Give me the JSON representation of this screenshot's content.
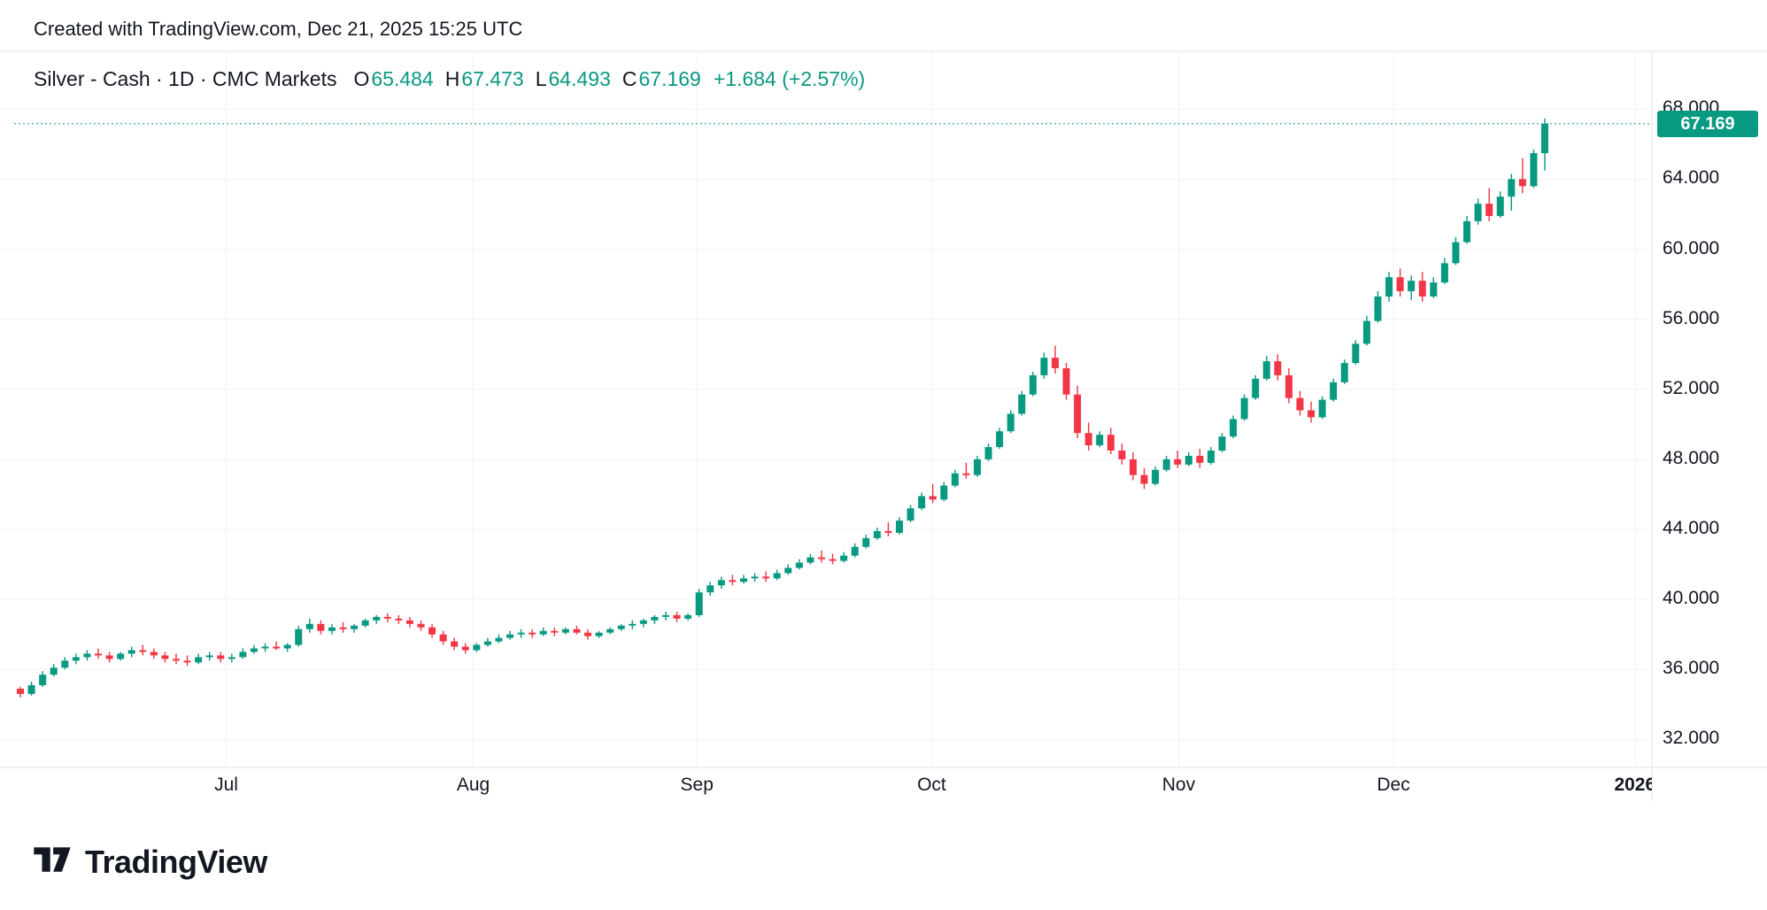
{
  "attribution": "Created with TradingView.com, Dec 21, 2025 15:25 UTC",
  "legend": {
    "symbol": "Silver - Cash · 1D · CMC Markets",
    "ohlc": [
      {
        "key": "O",
        "value": "65.484"
      },
      {
        "key": "H",
        "value": "67.473"
      },
      {
        "key": "L",
        "value": "64.493"
      },
      {
        "key": "C",
        "value": "67.169"
      }
    ],
    "change": "+1.684 (+2.57%)"
  },
  "price_label": "67.169",
  "logo": {
    "text": "TradingView"
  },
  "colors": {
    "up": "#089981",
    "down": "#f23645",
    "accent": "#089981",
    "grid": "#f0f3fa",
    "border": "#e0e3eb",
    "text": "#131722"
  },
  "chart_data": {
    "type": "candlestick",
    "title": "Silver - Cash, 1D, CMC Markets",
    "interval": "1D",
    "current_price": 67.169,
    "ylim": [
      30.4,
      71.3
    ],
    "y_ticks": [
      {
        "value": 68,
        "label": "68.000"
      },
      {
        "value": 64,
        "label": "64.000"
      },
      {
        "value": 60,
        "label": "60.000"
      },
      {
        "value": 56,
        "label": "56.000"
      },
      {
        "value": 52,
        "label": "52.000"
      },
      {
        "value": 48,
        "label": "48.000"
      },
      {
        "value": 44,
        "label": "44.000"
      },
      {
        "value": 40,
        "label": "40.000"
      },
      {
        "value": 36,
        "label": "36.000"
      },
      {
        "value": 32,
        "label": "32.000"
      }
    ],
    "x_ticks": [
      {
        "label": "Jul",
        "index": 18.5
      },
      {
        "label": "Aug",
        "index": 40.7
      },
      {
        "label": "Sep",
        "index": 60.8
      },
      {
        "label": "Oct",
        "index": 81.9
      },
      {
        "label": "Nov",
        "index": 104.1
      },
      {
        "label": "Dec",
        "index": 123.4
      },
      {
        "label": "2026",
        "index": 145.1,
        "year": true
      }
    ],
    "candles": [
      [
        34.9,
        35.0,
        34.4,
        34.6
      ],
      [
        34.6,
        35.3,
        34.5,
        35.1
      ],
      [
        35.1,
        35.9,
        35.0,
        35.7
      ],
      [
        35.7,
        36.3,
        35.6,
        36.1
      ],
      [
        36.1,
        36.7,
        36.0,
        36.5
      ],
      [
        36.5,
        36.9,
        36.3,
        36.7
      ],
      [
        36.7,
        37.1,
        36.5,
        36.9
      ],
      [
        36.9,
        37.2,
        36.6,
        36.8
      ],
      [
        36.8,
        37.0,
        36.4,
        36.6
      ],
      [
        36.6,
        37.0,
        36.5,
        36.9
      ],
      [
        36.9,
        37.3,
        36.7,
        37.1
      ],
      [
        37.1,
        37.4,
        36.8,
        37.0
      ],
      [
        37.0,
        37.2,
        36.6,
        36.8
      ],
      [
        36.8,
        37.0,
        36.4,
        36.6
      ],
      [
        36.6,
        36.9,
        36.3,
        36.5
      ],
      [
        36.5,
        36.8,
        36.2,
        36.4
      ],
      [
        36.4,
        36.9,
        36.3,
        36.7
      ],
      [
        36.7,
        37.0,
        36.5,
        36.8
      ],
      [
        36.8,
        37.0,
        36.4,
        36.6
      ],
      [
        36.6,
        36.9,
        36.4,
        36.7
      ],
      [
        36.7,
        37.2,
        36.6,
        37.0
      ],
      [
        37.0,
        37.4,
        36.9,
        37.2
      ],
      [
        37.2,
        37.5,
        37.0,
        37.3
      ],
      [
        37.3,
        37.6,
        37.1,
        37.2
      ],
      [
        37.2,
        37.5,
        37.0,
        37.4
      ],
      [
        37.4,
        38.5,
        37.3,
        38.3
      ],
      [
        38.3,
        38.9,
        38.1,
        38.6
      ],
      [
        38.6,
        38.8,
        38.0,
        38.2
      ],
      [
        38.2,
        38.6,
        38.0,
        38.4
      ],
      [
        38.4,
        38.7,
        38.1,
        38.3
      ],
      [
        38.3,
        38.6,
        38.1,
        38.5
      ],
      [
        38.5,
        38.9,
        38.4,
        38.8
      ],
      [
        38.8,
        39.1,
        38.6,
        39.0
      ],
      [
        39.0,
        39.2,
        38.7,
        38.9
      ],
      [
        38.9,
        39.1,
        38.6,
        38.8
      ],
      [
        38.8,
        39.0,
        38.4,
        38.6
      ],
      [
        38.6,
        38.8,
        38.2,
        38.4
      ],
      [
        38.4,
        38.6,
        37.8,
        38.0
      ],
      [
        38.0,
        38.2,
        37.4,
        37.6
      ],
      [
        37.6,
        37.8,
        37.1,
        37.3
      ],
      [
        37.3,
        37.5,
        36.9,
        37.1
      ],
      [
        37.1,
        37.5,
        37.0,
        37.4
      ],
      [
        37.4,
        37.8,
        37.3,
        37.6
      ],
      [
        37.6,
        38.0,
        37.5,
        37.8
      ],
      [
        37.8,
        38.2,
        37.7,
        38.0
      ],
      [
        38.0,
        38.3,
        37.8,
        38.1
      ],
      [
        38.1,
        38.3,
        37.8,
        38.0
      ],
      [
        38.0,
        38.4,
        37.9,
        38.2
      ],
      [
        38.2,
        38.4,
        37.9,
        38.1
      ],
      [
        38.1,
        38.4,
        38.0,
        38.3
      ],
      [
        38.3,
        38.5,
        38.0,
        38.1
      ],
      [
        38.1,
        38.3,
        37.7,
        37.9
      ],
      [
        37.9,
        38.2,
        37.8,
        38.1
      ],
      [
        38.1,
        38.4,
        38.0,
        38.3
      ],
      [
        38.3,
        38.6,
        38.2,
        38.5
      ],
      [
        38.5,
        38.8,
        38.3,
        38.6
      ],
      [
        38.6,
        38.9,
        38.4,
        38.8
      ],
      [
        38.8,
        39.1,
        38.6,
        39.0
      ],
      [
        39.0,
        39.3,
        38.8,
        39.1
      ],
      [
        39.1,
        39.3,
        38.7,
        38.9
      ],
      [
        38.9,
        39.2,
        38.8,
        39.1
      ],
      [
        39.1,
        40.6,
        39.0,
        40.4
      ],
      [
        40.4,
        41.0,
        40.2,
        40.8
      ],
      [
        40.8,
        41.3,
        40.6,
        41.1
      ],
      [
        41.1,
        41.4,
        40.8,
        41.0
      ],
      [
        41.0,
        41.4,
        40.9,
        41.2
      ],
      [
        41.2,
        41.5,
        41.0,
        41.3
      ],
      [
        41.3,
        41.6,
        41.0,
        41.2
      ],
      [
        41.2,
        41.7,
        41.1,
        41.5
      ],
      [
        41.5,
        42.0,
        41.4,
        41.8
      ],
      [
        41.8,
        42.3,
        41.7,
        42.1
      ],
      [
        42.1,
        42.6,
        42.0,
        42.4
      ],
      [
        42.4,
        42.8,
        42.1,
        42.3
      ],
      [
        42.3,
        42.6,
        42.0,
        42.2
      ],
      [
        42.2,
        42.7,
        42.1,
        42.5
      ],
      [
        42.5,
        43.2,
        42.4,
        43.0
      ],
      [
        43.0,
        43.7,
        42.9,
        43.5
      ],
      [
        43.5,
        44.1,
        43.4,
        43.9
      ],
      [
        43.9,
        44.4,
        43.6,
        43.8
      ],
      [
        43.8,
        44.7,
        43.7,
        44.5
      ],
      [
        44.5,
        45.4,
        44.4,
        45.2
      ],
      [
        45.2,
        46.1,
        45.1,
        45.9
      ],
      [
        45.9,
        46.6,
        45.5,
        45.7
      ],
      [
        45.7,
        46.7,
        45.6,
        46.5
      ],
      [
        46.5,
        47.4,
        46.4,
        47.2
      ],
      [
        47.2,
        47.8,
        46.9,
        47.1
      ],
      [
        47.1,
        48.2,
        47.0,
        48.0
      ],
      [
        48.0,
        48.9,
        47.9,
        48.7
      ],
      [
        48.7,
        49.8,
        48.6,
        49.6
      ],
      [
        49.6,
        50.8,
        49.5,
        50.6
      ],
      [
        50.6,
        51.9,
        50.5,
        51.7
      ],
      [
        51.7,
        53.0,
        51.6,
        52.8
      ],
      [
        52.8,
        54.1,
        52.6,
        53.8
      ],
      [
        53.8,
        54.5,
        52.9,
        53.2
      ],
      [
        53.2,
        53.5,
        51.4,
        51.7
      ],
      [
        51.7,
        52.2,
        49.2,
        49.5
      ],
      [
        49.5,
        50.1,
        48.5,
        48.8
      ],
      [
        48.8,
        49.6,
        48.7,
        49.4
      ],
      [
        49.4,
        49.8,
        48.3,
        48.5
      ],
      [
        48.5,
        48.9,
        47.7,
        48.0
      ],
      [
        48.0,
        48.4,
        46.8,
        47.1
      ],
      [
        47.1,
        47.5,
        46.3,
        46.6
      ],
      [
        46.6,
        47.6,
        46.5,
        47.4
      ],
      [
        47.4,
        48.2,
        47.3,
        48.0
      ],
      [
        48.0,
        48.5,
        47.5,
        47.7
      ],
      [
        47.7,
        48.4,
        47.6,
        48.2
      ],
      [
        48.2,
        48.6,
        47.5,
        47.8
      ],
      [
        47.8,
        48.7,
        47.7,
        48.5
      ],
      [
        48.5,
        49.5,
        48.4,
        49.3
      ],
      [
        49.3,
        50.5,
        49.2,
        50.3
      ],
      [
        50.3,
        51.7,
        50.2,
        51.5
      ],
      [
        51.5,
        52.8,
        51.4,
        52.6
      ],
      [
        52.6,
        53.9,
        52.5,
        53.6
      ],
      [
        53.6,
        54.0,
        52.5,
        52.8
      ],
      [
        52.8,
        53.2,
        51.2,
        51.5
      ],
      [
        51.5,
        51.9,
        50.5,
        50.8
      ],
      [
        50.8,
        51.3,
        50.1,
        50.4
      ],
      [
        50.4,
        51.6,
        50.3,
        51.4
      ],
      [
        51.4,
        52.6,
        51.3,
        52.4
      ],
      [
        52.4,
        53.7,
        52.3,
        53.5
      ],
      [
        53.5,
        54.8,
        53.4,
        54.6
      ],
      [
        54.6,
        56.2,
        54.5,
        55.9
      ],
      [
        55.9,
        57.6,
        55.8,
        57.3
      ],
      [
        57.3,
        58.7,
        57.0,
        58.4
      ],
      [
        58.4,
        58.9,
        57.3,
        57.6
      ],
      [
        57.6,
        58.5,
        57.1,
        58.2
      ],
      [
        58.2,
        58.7,
        57.0,
        57.3
      ],
      [
        57.3,
        58.4,
        57.2,
        58.1
      ],
      [
        58.1,
        59.5,
        58.0,
        59.2
      ],
      [
        59.2,
        60.7,
        59.1,
        60.4
      ],
      [
        60.4,
        61.9,
        60.3,
        61.6
      ],
      [
        61.6,
        62.9,
        61.4,
        62.6
      ],
      [
        62.6,
        63.5,
        61.6,
        61.9
      ],
      [
        61.9,
        63.3,
        61.8,
        63.0
      ],
      [
        63.0,
        64.3,
        62.2,
        64.0
      ],
      [
        64.0,
        65.2,
        63.2,
        63.6
      ],
      [
        63.6,
        65.7,
        63.5,
        65.485
      ],
      [
        65.484,
        67.473,
        64.493,
        67.169
      ]
    ]
  }
}
